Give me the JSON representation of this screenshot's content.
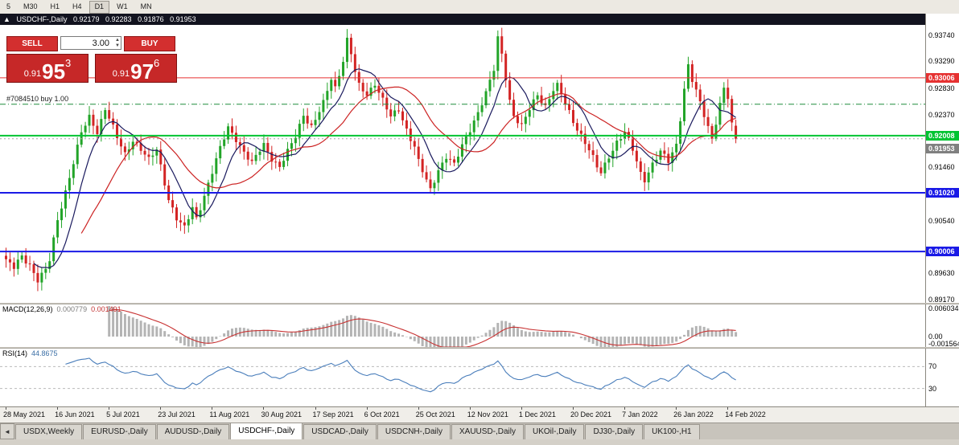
{
  "toolbar": {
    "periods": [
      "5",
      "M30",
      "H1",
      "H4",
      "D1",
      "W1",
      "MN"
    ],
    "active": "D1"
  },
  "chart": {
    "title_arrow": "▲",
    "title": "USDCHF-,Daily",
    "ohlc": {
      "open": "0.92179",
      "high": "0.92283",
      "low": "0.91876",
      "close": "0.91953"
    },
    "trade_panel": {
      "sell_label": "SELL",
      "buy_label": "BUY",
      "volume": "3.00",
      "bid_big": {
        "prefix": "0.91",
        "big": "95",
        "sup": "3"
      },
      "ask_big": {
        "prefix": "0.91",
        "big": "97",
        "sup": "6"
      }
    }
  },
  "chart_data": {
    "type": "candlestick",
    "symbol": "USDCHF-",
    "timeframe": "Daily",
    "num_candles": 185,
    "candles_per_label": 13,
    "x_labels": [
      "28 May 2021",
      "16 Jun 2021",
      "5 Jul 2021",
      "23 Jul 2021",
      "11 Aug 2021",
      "30 Aug 2021",
      "17 Sep 2021",
      "6 Oct 2021",
      "25 Oct 2021",
      "12 Nov 2021",
      "1 Dec 2021",
      "20 Dec 2021",
      "7 Jan 2022",
      "26 Jan 2022",
      "14 Feb 2022"
    ],
    "price_range": {
      "min": 0.8912,
      "max": 0.9392
    },
    "axis_ticks": [
      "0.93740",
      "0.93290",
      "0.92830",
      "0.92370",
      "0.91460",
      "0.90540",
      "0.89630",
      "0.89170"
    ],
    "current_candle": {
      "open": 0.92179,
      "high": 0.92283,
      "low": 0.91876,
      "close": 0.91953
    },
    "close_waypoints": [
      [
        0,
        0.8985
      ],
      [
        2,
        0.8972
      ],
      [
        4,
        0.8992
      ],
      [
        6,
        0.8978
      ],
      [
        8,
        0.8952
      ],
      [
        10,
        0.8968
      ],
      [
        11,
        0.8985
      ],
      [
        13,
        0.9055
      ],
      [
        15,
        0.9105
      ],
      [
        17,
        0.9155
      ],
      [
        19,
        0.9205
      ],
      [
        21,
        0.9232
      ],
      [
        23,
        0.9208
      ],
      [
        25,
        0.9248
      ],
      [
        26,
        0.9232
      ],
      [
        28,
        0.9196
      ],
      [
        30,
        0.9168
      ],
      [
        32,
        0.9194
      ],
      [
        34,
        0.9178
      ],
      [
        36,
        0.9158
      ],
      [
        38,
        0.9176
      ],
      [
        39,
        0.9148
      ],
      [
        41,
        0.9092
      ],
      [
        43,
        0.9058
      ],
      [
        45,
        0.904
      ],
      [
        47,
        0.9076
      ],
      [
        48,
        0.9058
      ],
      [
        50,
        0.9098
      ],
      [
        52,
        0.9138
      ],
      [
        54,
        0.9178
      ],
      [
        56,
        0.9215
      ],
      [
        58,
        0.9196
      ],
      [
        60,
        0.9172
      ],
      [
        62,
        0.9152
      ],
      [
        64,
        0.9176
      ],
      [
        65,
        0.9186
      ],
      [
        67,
        0.9162
      ],
      [
        69,
        0.9146
      ],
      [
        71,
        0.9172
      ],
      [
        73,
        0.92
      ],
      [
        75,
        0.9238
      ],
      [
        77,
        0.9216
      ],
      [
        78,
        0.9228
      ],
      [
        80,
        0.9256
      ],
      [
        82,
        0.93
      ],
      [
        83,
        0.9284
      ],
      [
        85,
        0.9332
      ],
      [
        86,
        0.9366
      ],
      [
        87,
        0.9342
      ],
      [
        88,
        0.931
      ],
      [
        89,
        0.9286
      ],
      [
        91,
        0.9272
      ],
      [
        93,
        0.9292
      ],
      [
        95,
        0.9262
      ],
      [
        97,
        0.9232
      ],
      [
        99,
        0.9246
      ],
      [
        101,
        0.9212
      ],
      [
        103,
        0.9182
      ],
      [
        104,
        0.9156
      ],
      [
        106,
        0.9122
      ],
      [
        107,
        0.9106
      ],
      [
        109,
        0.9142
      ],
      [
        111,
        0.9166
      ],
      [
        113,
        0.915
      ],
      [
        115,
        0.9182
      ],
      [
        117,
        0.9212
      ],
      [
        119,
        0.9242
      ],
      [
        121,
        0.9274
      ],
      [
        123,
        0.9314
      ],
      [
        124,
        0.9368
      ],
      [
        125,
        0.9342
      ],
      [
        126,
        0.9302
      ],
      [
        127,
        0.9262
      ],
      [
        128,
        0.9236
      ],
      [
        130,
        0.9216
      ],
      [
        132,
        0.9246
      ],
      [
        134,
        0.9272
      ],
      [
        136,
        0.9252
      ],
      [
        138,
        0.928
      ],
      [
        139,
        0.9286
      ],
      [
        141,
        0.9256
      ],
      [
        143,
        0.9226
      ],
      [
        145,
        0.9202
      ],
      [
        147,
        0.9176
      ],
      [
        149,
        0.9146
      ],
      [
        150,
        0.9136
      ],
      [
        152,
        0.9166
      ],
      [
        154,
        0.919
      ],
      [
        156,
        0.9206
      ],
      [
        158,
        0.9176
      ],
      [
        160,
        0.9136
      ],
      [
        161,
        0.9126
      ],
      [
        163,
        0.9152
      ],
      [
        165,
        0.9172
      ],
      [
        167,
        0.9156
      ],
      [
        169,
        0.9186
      ],
      [
        170,
        0.9232
      ],
      [
        171,
        0.9282
      ],
      [
        172,
        0.9322
      ],
      [
        173,
        0.9296
      ],
      [
        175,
        0.9256
      ],
      [
        177,
        0.9216
      ],
      [
        178,
        0.9196
      ],
      [
        179,
        0.9226
      ],
      [
        180,
        0.9256
      ],
      [
        181,
        0.9282
      ],
      [
        182,
        0.9266
      ],
      [
        183,
        0.9218
      ],
      [
        184,
        0.91953
      ]
    ],
    "hlines": [
      {
        "price": 0.93006,
        "label": "0.93006",
        "color": "#e63232",
        "width": 1
      },
      {
        "price": 0.92008,
        "label": "0.92008",
        "color": "#00c432",
        "width": 2
      },
      {
        "price": 0.9102,
        "label": "0.91020",
        "color": "#1a1ae6",
        "width": 2
      },
      {
        "price": 0.90006,
        "label": "0.90006",
        "color": "#1a1ae6",
        "width": 2
      }
    ],
    "order_line": {
      "price": 0.9255,
      "label": "#7084510 buy 1.00",
      "color": "#1e8c3c"
    },
    "bid_line": {
      "price": 0.91953,
      "label": "0.91953",
      "color": "#808080"
    }
  },
  "macd": {
    "label": "MACD(12,26,9)",
    "value_main": "0.000779",
    "value_signal": "0.001491",
    "ticks": [
      "0.006034",
      "0.00",
      "-0.001564"
    ],
    "scale": {
      "min": -0.0022,
      "max": 0.0068
    }
  },
  "rsi": {
    "label": "RSI(14)",
    "value": "44.8675",
    "levels": [
      70,
      30
    ],
    "ticks": [
      "70",
      "30"
    ]
  },
  "tabs": {
    "scroll_left": "◄",
    "items": [
      "USDX,Weekly",
      "EURUSD-,Daily",
      "AUDUSD-,Daily",
      "USDCHF-,Daily",
      "USDCAD-,Daily",
      "USDCNH-,Daily",
      "XAUUSD-,Daily",
      "UKOil-,Daily",
      "DJ30-,Daily",
      "UK100-,H1"
    ],
    "active": "USDCHF-,Daily"
  },
  "colors": {
    "candle_up": "#22a428",
    "candle_down": "#d32424",
    "ma_fast": "#1a1a5e",
    "ma_slow": "#cc2222",
    "macd_hist": "#b4b4b4",
    "macd_signal": "#c83232",
    "rsi_line": "#4a7ebb",
    "level_dash": "#b9b9b9"
  }
}
